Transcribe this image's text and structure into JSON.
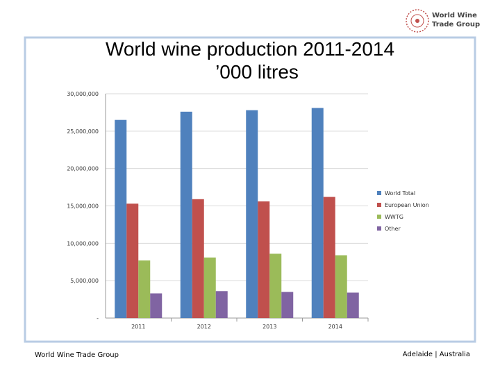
{
  "logo": [
    "World Wine",
    "Trade Group"
  ],
  "footer": {
    "left": "World Wine Trade Group",
    "right": "Adelaide | Australia"
  },
  "chart_data": {
    "type": "bar",
    "title": "World wine production 2011-2014",
    "subtitle": "’000 litres",
    "categories": [
      "2011",
      "2012",
      "2013",
      "2014"
    ],
    "series": [
      {
        "name": "World Total",
        "color": "#4f81bd",
        "values": [
          26500000,
          27600000,
          27800000,
          28100000
        ]
      },
      {
        "name": "European Union",
        "color": "#c0504d",
        "values": [
          15300000,
          15900000,
          15600000,
          16200000
        ]
      },
      {
        "name": "WWTG",
        "color": "#9bbb59",
        "values": [
          7700000,
          8100000,
          8600000,
          8400000
        ]
      },
      {
        "name": "Other",
        "color": "#8064a2",
        "values": [
          3300000,
          3600000,
          3500000,
          3400000
        ]
      }
    ],
    "ylim": [
      0,
      30000000
    ],
    "yticks": [
      {
        "value": 0,
        "label": "-"
      },
      {
        "value": 5000000,
        "label": "5,000,000"
      },
      {
        "value": 10000000,
        "label": "10,000,000"
      },
      {
        "value": 15000000,
        "label": "15,000,000"
      },
      {
        "value": 20000000,
        "label": "20,000,000"
      },
      {
        "value": 25000000,
        "label": "25,000,000"
      },
      {
        "value": 30000000,
        "label": "30,000,000"
      }
    ],
    "grid": true,
    "legend": "right"
  }
}
